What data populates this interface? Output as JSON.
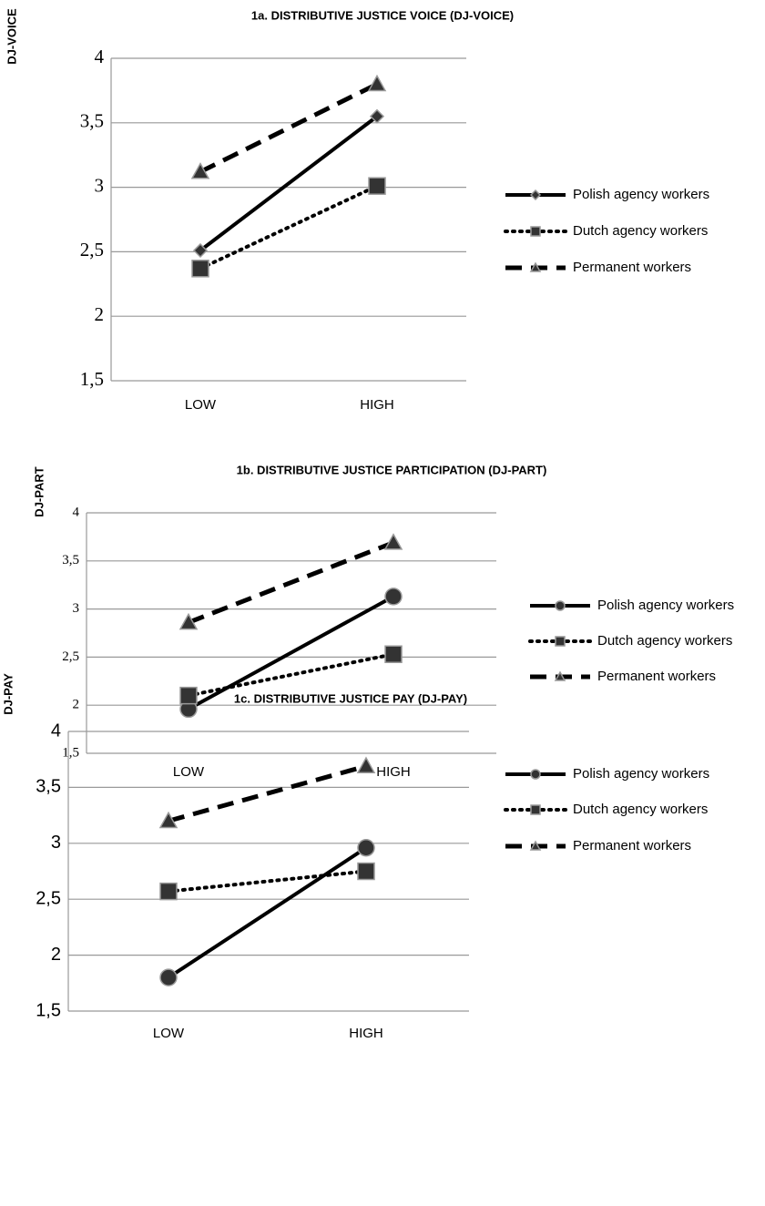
{
  "chart_data": [
    {
      "type": "line",
      "title": "1a. DISTRIBUTIVE JUSTICE VOICE (DJ-VOICE)",
      "y_label": "DJ-VOICE",
      "categories": [
        "LOW",
        "HIGH"
      ],
      "series": [
        {
          "name": "Polish agency workers",
          "color": "#000000",
          "style": "solid",
          "marker": "diamond",
          "values": [
            2.51,
            3.55
          ]
        },
        {
          "name": "Dutch agency workers",
          "color": "#000000",
          "style": "dotted",
          "marker": "square",
          "values": [
            2.37,
            3.01
          ]
        },
        {
          "name": "Permanent workers",
          "color": "#000000",
          "style": "dashed",
          "marker": "triangle",
          "values": [
            3.12,
            3.8
          ]
        }
      ],
      "ylim": [
        1.5,
        4
      ],
      "yticks": [
        {
          "value": 1.5,
          "label": "1,5"
        },
        2,
        {
          "value": 2.5,
          "label": "2,5"
        },
        3,
        {
          "value": 3.5,
          "label": "3,5"
        },
        4
      ],
      "grid": true,
      "legend": "right"
    },
    {
      "type": "line",
      "title": "1b. DISTRIBUTIVE JUSTICE PARTICIPATION (DJ-PART)",
      "y_label": "DJ-PART",
      "categories": [
        "LOW",
        "HIGH"
      ],
      "series": [
        {
          "name": "Polish agency workers",
          "color": "#000000",
          "style": "solid",
          "marker": "circle",
          "values": [
            1.96,
            3.13
          ]
        },
        {
          "name": "Dutch agency workers",
          "color": "#000000",
          "style": "dotted",
          "marker": "square",
          "values": [
            2.1,
            2.53
          ]
        },
        {
          "name": "Permanent workers",
          "color": "#000000",
          "style": "dashed",
          "marker": "triangle",
          "values": [
            2.86,
            3.69
          ]
        }
      ],
      "ylim": [
        1.5,
        4
      ],
      "yticks": [
        {
          "value": 1.5,
          "label": "1,5"
        },
        2,
        {
          "value": 2.5,
          "label": "2,5"
        },
        3,
        {
          "value": 3.5,
          "label": "3,5"
        },
        4
      ],
      "grid": true,
      "legend": "right"
    },
    {
      "type": "line",
      "title": "1c. DISTRIBUTIVE JUSTICE PAY (DJ-PAY)",
      "y_label": "DJ-PAY",
      "categories": [
        "LOW",
        "HIGH"
      ],
      "series": [
        {
          "name": "Polish agency workers",
          "color": "#000000",
          "style": "solid",
          "marker": "circle",
          "values": [
            1.8,
            2.96
          ]
        },
        {
          "name": "Dutch agency workers",
          "color": "#000000",
          "style": "dotted",
          "marker": "square",
          "values": [
            2.57,
            2.75
          ]
        },
        {
          "name": "Permanent workers",
          "color": "#000000",
          "style": "dashed",
          "marker": "triangle",
          "values": [
            3.2,
            3.69
          ]
        }
      ],
      "ylim": [
        1.5,
        4
      ],
      "yticks": [
        {
          "value": 1.5,
          "label": "1,5"
        },
        2,
        {
          "value": 2.5,
          "label": "2,5"
        },
        3,
        {
          "value": 3.5,
          "label": "3,5"
        },
        4
      ],
      "grid": true,
      "legend": "right"
    }
  ]
}
